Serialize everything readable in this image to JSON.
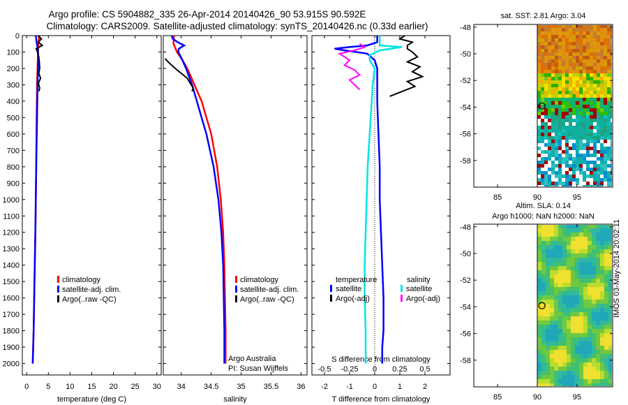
{
  "header": {
    "line1": "Argo profile: CS 5904882_335 26-Apr-2014 20140426_90 53.915S 90.592E",
    "line2": "Climatology: CARS2009. Satellite-adjusted climatology: synTS_20140426.nc (0.33d earlier)"
  },
  "colors": {
    "climatology": "#ff0000",
    "satellite": "#0000ff",
    "argo": "#000000",
    "satellite_salinity": "#00e5e5",
    "argo_adj_salinity": "#ff00ff"
  },
  "chart_data": [
    {
      "id": "temperature",
      "type": "line",
      "xlabel": "temperature (deg C)",
      "ylabel": "",
      "xlim": [
        -1,
        31
      ],
      "ylim": [
        2070,
        0
      ],
      "xticks": [
        0,
        5,
        10,
        15,
        20,
        25,
        30
      ],
      "yticks": [
        0,
        100,
        200,
        300,
        400,
        500,
        600,
        700,
        800,
        900,
        1000,
        1100,
        1200,
        1300,
        1400,
        1500,
        1600,
        1700,
        1800,
        1900,
        2000
      ],
      "legend": {
        "position": "middle-right",
        "labels": [
          "climatology",
          "satellite-adj. clim.",
          "Argo(..raw -QC)"
        ]
      },
      "series": [
        {
          "name": "climatology",
          "depth": [
            0,
            50,
            100,
            200,
            300,
            500,
            800,
            1000,
            1200,
            1500,
            1800,
            2000
          ],
          "values": [
            2.9,
            2.7,
            2.6,
            2.5,
            2.4,
            2.3,
            2.2,
            2.1,
            2.0,
            1.8,
            1.6,
            1.4
          ]
        },
        {
          "name": "satellite-adj. clim.",
          "depth": [
            0,
            40,
            90,
            150,
            200,
            300,
            500,
            800,
            1000,
            1200,
            1500,
            1800,
            2000
          ],
          "values": [
            2.1,
            2.3,
            2.6,
            2.7,
            2.6,
            2.5,
            2.4,
            2.2,
            2.1,
            2.0,
            1.8,
            1.6,
            1.4
          ]
        },
        {
          "name": "Argo(..raw -QC)",
          "depth": [
            0,
            20,
            40,
            60,
            80,
            100,
            130,
            160,
            200,
            230,
            260,
            290,
            320,
            340
          ],
          "values": [
            2.6,
            3.4,
            2.7,
            3.6,
            2.2,
            2.5,
            2.8,
            2.9,
            3.0,
            2.8,
            3.2,
            2.7,
            3.0,
            2.8
          ]
        }
      ]
    },
    {
      "id": "salinity",
      "type": "line",
      "xlabel": "salinity",
      "xlim": [
        33.7,
        36.1
      ],
      "ylim": [
        2070,
        0
      ],
      "xticks": [
        34,
        34.5,
        35,
        35.5,
        36
      ],
      "yticks": [
        0,
        100,
        200,
        300,
        400,
        500,
        600,
        700,
        800,
        900,
        1000,
        1100,
        1200,
        1300,
        1400,
        1500,
        1600,
        1700,
        1800,
        1900,
        2000
      ],
      "legend": {
        "position": "middle-right",
        "labels": [
          "climatology",
          "satellite-adj. clim.",
          "Argo(..raw -QC)"
        ]
      },
      "annotation": [
        "Argo Australia",
        "PI: Susan Wijffels"
      ],
      "series": [
        {
          "name": "climatology",
          "depth": [
            0,
            50,
            100,
            150,
            200,
            300,
            400,
            500,
            600,
            800,
            1000,
            1200,
            1400,
            1600,
            1800,
            2000
          ],
          "values": [
            33.88,
            33.87,
            33.93,
            34.02,
            34.1,
            34.22,
            34.34,
            34.42,
            34.5,
            34.6,
            34.66,
            34.7,
            34.72,
            34.73,
            34.74,
            34.74
          ]
        },
        {
          "name": "satellite-adj. clim.",
          "depth": [
            0,
            20,
            40,
            60,
            80,
            100,
            150,
            200,
            300,
            400,
            500,
            600,
            800,
            1000,
            1200,
            1400,
            1600,
            1800,
            2000
          ],
          "values": [
            33.84,
            33.86,
            33.94,
            34.05,
            33.96,
            33.95,
            34.02,
            34.08,
            34.18,
            34.26,
            34.34,
            34.42,
            34.54,
            34.62,
            34.67,
            34.7,
            34.71,
            34.72,
            34.72
          ]
        },
        {
          "name": "Argo(..raw -QC)",
          "depth": [
            140,
            160,
            180,
            200,
            230,
            260,
            290,
            320,
            340
          ],
          "values": [
            33.73,
            33.78,
            33.84,
            33.9,
            34.0,
            34.1,
            34.15,
            34.2,
            34.18
          ]
        }
      ]
    },
    {
      "id": "differences",
      "type": "line",
      "xlabel": "T difference from climatology",
      "xlabel_top": "S difference from climatology",
      "xlim": [
        -2.5,
        3
      ],
      "ylim": [
        2070,
        0
      ],
      "xticks": [
        -2,
        -1,
        0,
        1,
        2
      ],
      "x2ticks": [
        -0.5,
        -0.25,
        0,
        0.25,
        0.5
      ],
      "yticks": [
        0,
        100,
        200,
        300,
        400,
        500,
        600,
        700,
        800,
        900,
        1000,
        1100,
        1200,
        1300,
        1400,
        1500,
        1600,
        1700,
        1800,
        1900,
        2000
      ],
      "legend": {
        "position": "middle",
        "temperature_heading": "temperature",
        "salinity_heading": "salinity",
        "labels": [
          "satellite",
          "Argo(-adj)",
          "satellite",
          "Argo(-adj)"
        ]
      },
      "series": [
        {
          "name": "temperature satellite",
          "depth": [
            0,
            40,
            60,
            70,
            80,
            90,
            110,
            150,
            200,
            400,
            600,
            800,
            1000,
            1200,
            1400,
            1600,
            1700,
            1800,
            1900,
            2000
          ],
          "values": [
            0.1,
            0.1,
            -0.3,
            -1.0,
            -1.6,
            -1.2,
            -0.3,
            0.0,
            0.1,
            0.1,
            0.15,
            0.2,
            0.2,
            0.25,
            0.3,
            0.35,
            0.35,
            0.35,
            0.3,
            0.3
          ]
        },
        {
          "name": "temperature Argo(-adj)",
          "depth": [
            0,
            20,
            40,
            60,
            80,
            100,
            130,
            160,
            190,
            220,
            250,
            280,
            310,
            340,
            370
          ],
          "values": [
            1.2,
            1.0,
            1.5,
            1.3,
            1.3,
            1.5,
            1.7,
            1.3,
            1.8,
            1.5,
            1.9,
            1.3,
            1.6,
            1.1,
            0.6
          ]
        },
        {
          "name": "salinity satellite",
          "depth": [
            0,
            60,
            70,
            90,
            120,
            150,
            200,
            300,
            400,
            600,
            800,
            1000,
            1200,
            1400,
            1600,
            1800,
            2000
          ],
          "values": [
            0.05,
            0.05,
            0.27,
            0.05,
            -0.05,
            -0.05,
            0.0,
            -0.02,
            -0.03,
            -0.05,
            -0.07,
            -0.08,
            -0.09,
            -0.1,
            -0.1,
            -0.09,
            -0.09
          ]
        },
        {
          "name": "salinity Argo(-adj)",
          "depth": [
            50,
            70,
            90,
            110,
            130,
            150,
            180,
            210,
            240,
            270,
            300,
            330
          ],
          "values": [
            -0.15,
            -0.1,
            -0.2,
            -0.35,
            -0.3,
            -0.25,
            -0.3,
            -0.2,
            -0.15,
            -0.25,
            -0.2,
            -0.15
          ]
        }
      ]
    },
    {
      "id": "sst-map",
      "type": "heatmap",
      "title": "sat. SST: 2.81  Argo: 3.04",
      "xlim": [
        82,
        99.5
      ],
      "ylim": [
        -60,
        -47.8
      ],
      "xticks": [
        85,
        90,
        95
      ],
      "yticks": [
        -48,
        -50,
        -52,
        -54,
        -56,
        -58
      ]
    },
    {
      "id": "sla-map",
      "type": "heatmap",
      "title_line1": "Altim. SLA: 0.14",
      "title_line2": "Argo h1000: NaN h2000: NaN",
      "xlim": [
        82,
        99.5
      ],
      "ylim": [
        -60,
        -47.8
      ],
      "xticks": [
        85,
        90,
        95
      ],
      "yticks": [
        -48,
        -50,
        -52,
        -54,
        -56,
        -58
      ]
    }
  ],
  "float_position": {
    "lon": 90.592,
    "lat": -53.915
  },
  "side_label": "IMOS 03-May-2014 20:02:11"
}
